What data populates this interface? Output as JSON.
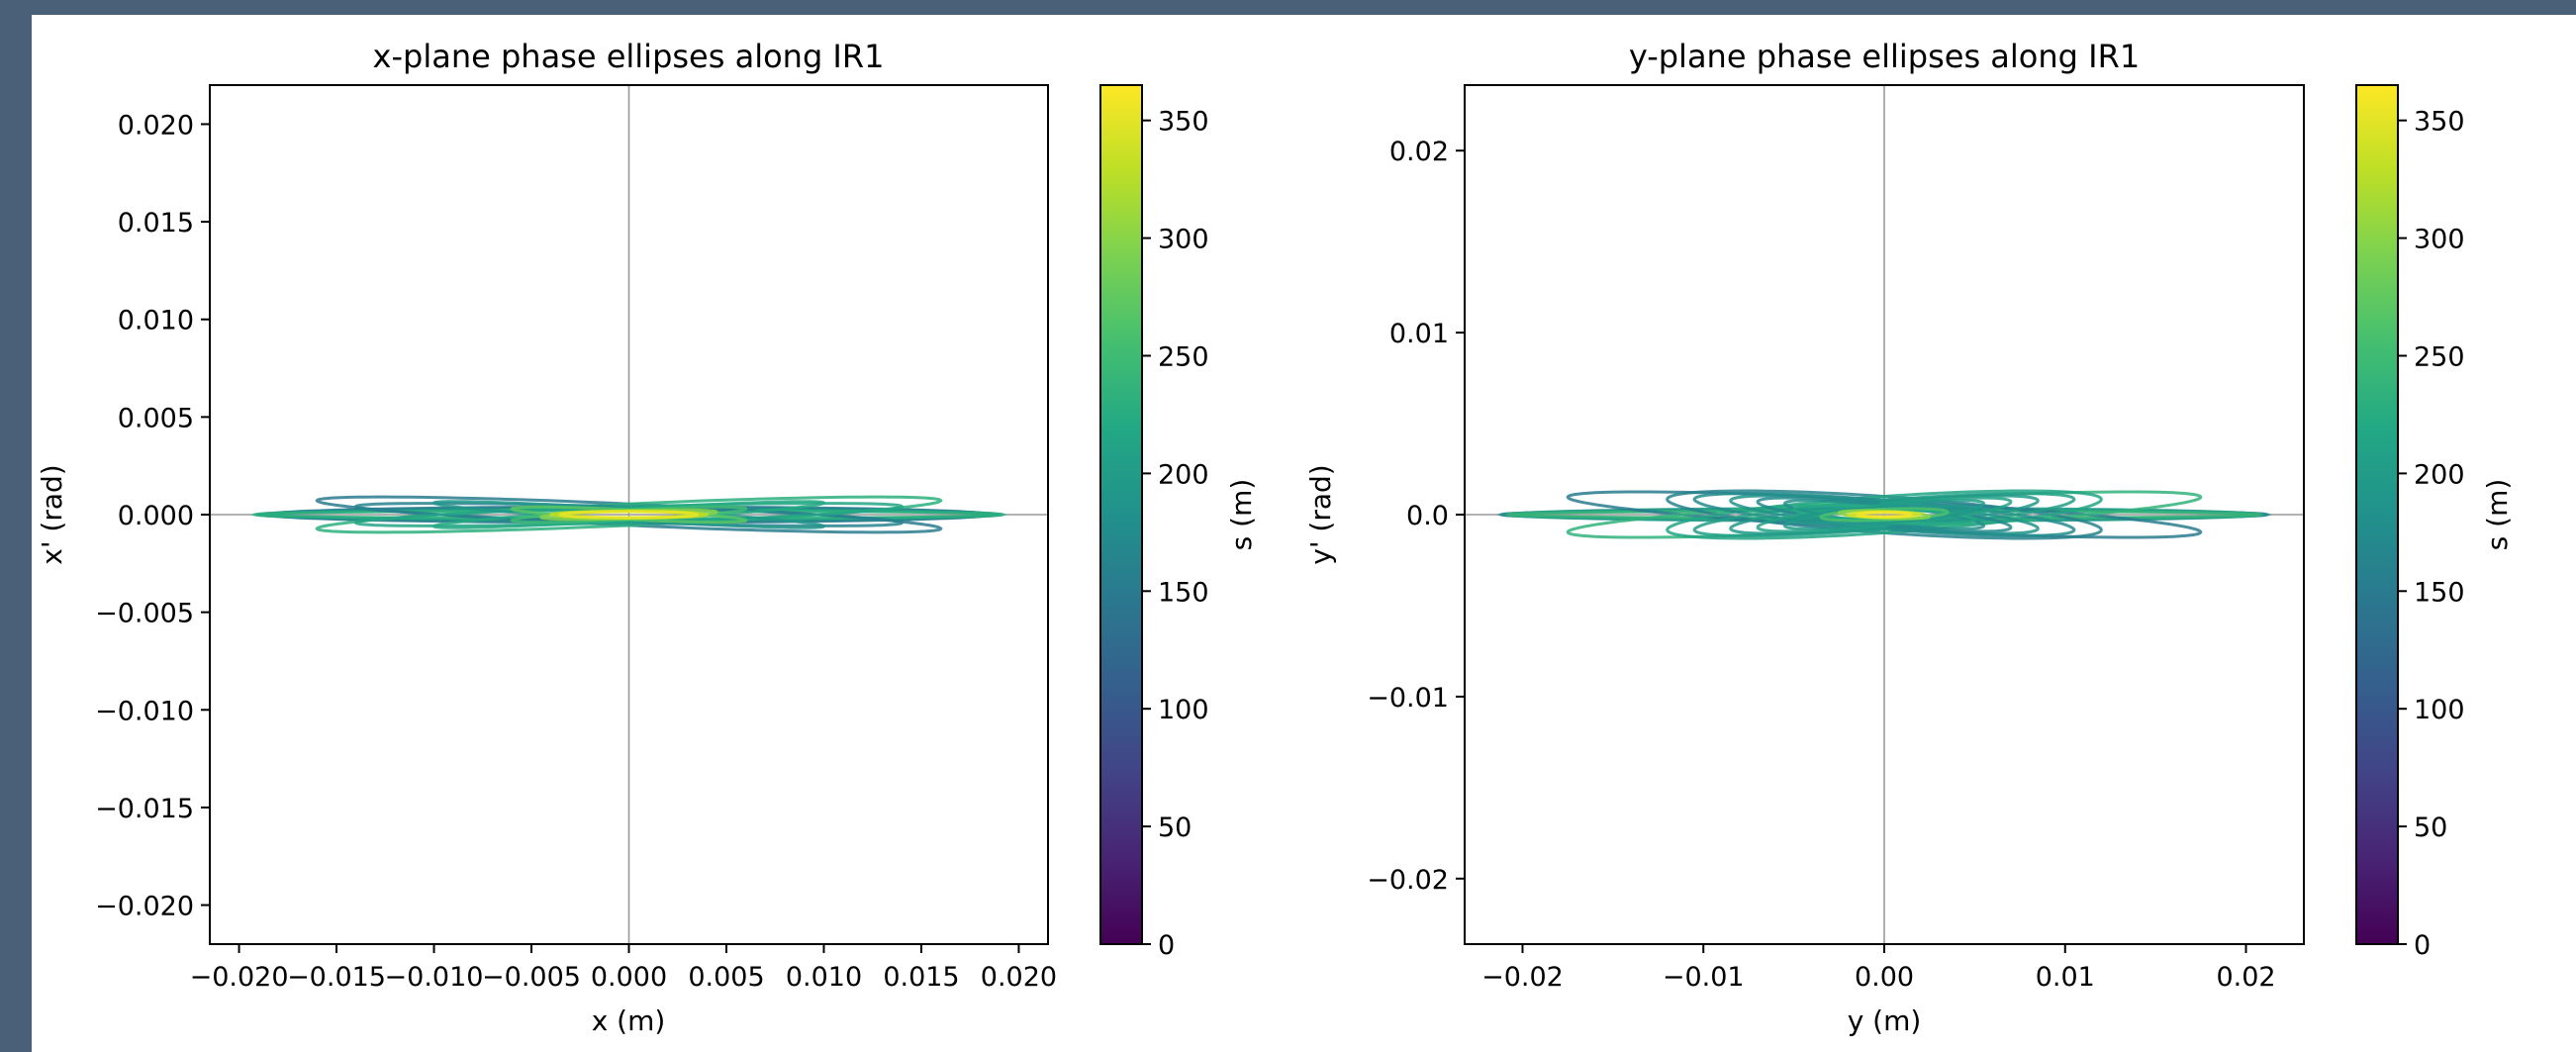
{
  "charts": [
    {
      "type": "line",
      "title": "x-plane phase ellipses along IR1",
      "xlabel": "x (m)",
      "ylabel": "x' (rad)",
      "xlim": [
        -0.0215,
        0.0215
      ],
      "ylim": [
        -0.022,
        0.022
      ],
      "xticks": [
        -0.02,
        -0.015,
        -0.01,
        -0.005,
        0.0,
        0.005,
        0.01,
        0.015,
        0.02
      ],
      "xtick_labels": [
        "−0.020",
        "−0.015",
        "−0.010",
        "−0.005",
        "0.000",
        "0.005",
        "0.010",
        "0.015",
        "0.020"
      ],
      "yticks": [
        0.02,
        0.015,
        0.01,
        0.005,
        0.0,
        -0.005,
        -0.01,
        -0.015,
        -0.02
      ],
      "ytick_labels": [
        "0.020",
        "0.015",
        "0.010",
        "0.005",
        "0.000",
        "−0.005",
        "−0.010",
        "−0.015",
        "−0.020"
      ],
      "crosshair": true,
      "colorbar": {
        "label": "s (m)",
        "range": [
          0,
          365
        ],
        "ticks": [
          0,
          50,
          100,
          150,
          200,
          250,
          300,
          350
        ],
        "tick_labels": [
          "0",
          "50",
          "100",
          "150",
          "200",
          "250",
          "300",
          "350"
        ],
        "colormap": "viridis"
      },
      "ellipses": [
        {
          "s": 120,
          "a": 0.0185,
          "b": 0.00035,
          "angle": 0
        },
        {
          "s": 150,
          "a": 0.0185,
          "b": 0.0004,
          "angle": 0
        },
        {
          "s": 175,
          "a": 0.019,
          "b": 0.0003,
          "angle": 0
        },
        {
          "s": 200,
          "a": 0.0188,
          "b": 0.00025,
          "angle": 0
        },
        {
          "s": 230,
          "a": 0.0192,
          "b": 0.0002,
          "angle": 0
        },
        {
          "s": 150,
          "a": 0.016,
          "b": 0.00055,
          "angle": -0.045
        },
        {
          "s": 230,
          "a": 0.016,
          "b": 0.00055,
          "angle": 0.045
        },
        {
          "s": 160,
          "a": 0.014,
          "b": 0.0004,
          "angle": -0.03
        },
        {
          "s": 215,
          "a": 0.014,
          "b": 0.0004,
          "angle": 0.03
        },
        {
          "s": 190,
          "a": 0.01,
          "b": 0.0003,
          "angle": -0.06
        },
        {
          "s": 220,
          "a": 0.01,
          "b": 0.0003,
          "angle": 0.06
        },
        {
          "s": 250,
          "a": 0.006,
          "b": 0.00025,
          "angle": 0.05
        },
        {
          "s": 270,
          "a": 0.006,
          "b": 0.00025,
          "angle": -0.05
        },
        {
          "s": 300,
          "a": 0.0045,
          "b": 0.0002,
          "angle": 0.03
        },
        {
          "s": 330,
          "a": 0.004,
          "b": 0.00018,
          "angle": 0
        },
        {
          "s": 355,
          "a": 0.0035,
          "b": 0.00015,
          "angle": 0
        }
      ]
    },
    {
      "type": "line",
      "title": "y-plane phase ellipses along IR1",
      "xlabel": "y (m)",
      "ylabel": "y' (rad)",
      "xlim": [
        -0.0232,
        0.0232
      ],
      "ylim": [
        -0.0236,
        0.0236
      ],
      "xticks": [
        -0.02,
        -0.01,
        0.0,
        0.01,
        0.02
      ],
      "xtick_labels": [
        "−0.02",
        "−0.01",
        "0.00",
        "0.01",
        "0.02"
      ],
      "yticks": [
        0.02,
        0.01,
        0.0,
        -0.01,
        -0.02
      ],
      "ytick_labels": [
        "0.02",
        "0.01",
        "0.0",
        "−0.01",
        "−0.02"
      ],
      "crosshair": true,
      "colorbar": {
        "label": "s (m)",
        "range": [
          0,
          365
        ],
        "ticks": [
          0,
          50,
          100,
          150,
          200,
          250,
          300,
          350
        ],
        "tick_labels": [
          "0",
          "50",
          "100",
          "150",
          "200",
          "250",
          "300",
          "350"
        ],
        "colormap": "viridis"
      },
      "ellipses": [
        {
          "s": 140,
          "a": 0.021,
          "b": 0.0003,
          "angle": 0
        },
        {
          "s": 170,
          "a": 0.0212,
          "b": 0.00025,
          "angle": 0
        },
        {
          "s": 200,
          "a": 0.0205,
          "b": 0.00035,
          "angle": 0
        },
        {
          "s": 240,
          "a": 0.0208,
          "b": 0.0002,
          "angle": 0
        },
        {
          "s": 150,
          "a": 0.0175,
          "b": 0.0008,
          "angle": -0.055
        },
        {
          "s": 235,
          "a": 0.0175,
          "b": 0.0008,
          "angle": 0.055
        },
        {
          "s": 160,
          "a": 0.012,
          "b": 0.001,
          "angle": -0.07
        },
        {
          "s": 215,
          "a": 0.012,
          "b": 0.001,
          "angle": 0.07
        },
        {
          "s": 175,
          "a": 0.0105,
          "b": 0.0008,
          "angle": -0.08
        },
        {
          "s": 205,
          "a": 0.0105,
          "b": 0.0008,
          "angle": 0.08
        },
        {
          "s": 185,
          "a": 0.0085,
          "b": 0.0007,
          "angle": -0.09
        },
        {
          "s": 195,
          "a": 0.0085,
          "b": 0.0007,
          "angle": 0.09
        },
        {
          "s": 170,
          "a": 0.007,
          "b": 0.0006,
          "angle": -0.1
        },
        {
          "s": 210,
          "a": 0.007,
          "b": 0.0006,
          "angle": 0.1
        },
        {
          "s": 180,
          "a": 0.0055,
          "b": 0.0005,
          "angle": -0.11
        },
        {
          "s": 200,
          "a": 0.0055,
          "b": 0.0005,
          "angle": 0.11
        },
        {
          "s": 220,
          "a": 0.005,
          "b": 0.0004,
          "angle": -0.06
        },
        {
          "s": 190,
          "a": 0.005,
          "b": 0.0004,
          "angle": 0.06
        },
        {
          "s": 260,
          "a": 0.0035,
          "b": 0.0003,
          "angle": 0.04
        },
        {
          "s": 300,
          "a": 0.0025,
          "b": 0.0002,
          "angle": -0.04
        },
        {
          "s": 340,
          "a": 0.002,
          "b": 0.00015,
          "angle": 0
        },
        {
          "s": 360,
          "a": 0.0015,
          "b": 0.00012,
          "angle": 0
        }
      ]
    }
  ]
}
